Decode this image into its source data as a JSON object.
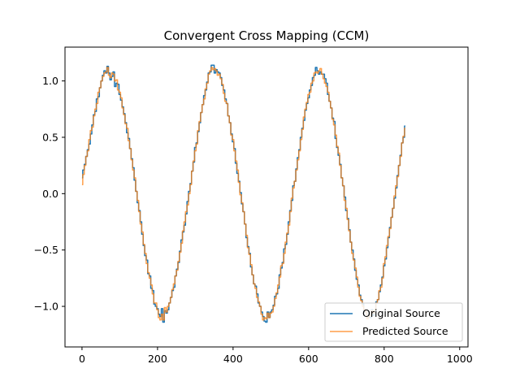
{
  "chart_data": {
    "type": "line",
    "title": "Convergent Cross Mapping (CCM)",
    "xlabel": "",
    "ylabel": "",
    "xlim": [
      -45,
      1022
    ],
    "ylim": [
      -1.36,
      1.3
    ],
    "x_ticks": [
      0,
      200,
      400,
      600,
      800,
      1000
    ],
    "x_tick_labels": [
      "0",
      "200",
      "400",
      "600",
      "800",
      "1000"
    ],
    "y_ticks": [
      -1.0,
      -0.5,
      0.0,
      0.5,
      1.0
    ],
    "y_tick_labels": [
      "−1.0",
      "−0.5",
      "0.0",
      "0.5",
      "1.0"
    ],
    "grid": false,
    "legend_position": "lower-right",
    "series": [
      {
        "name": "Original Source",
        "color": "#1f77b4",
        "x_start": 0,
        "x_step": 4,
        "values": [
          0.14,
          0.21,
          0.26,
          0.33,
          0.39,
          0.44,
          0.53,
          0.61,
          0.7,
          0.73,
          0.84,
          0.86,
          0.94,
          1.0,
          1.05,
          1.09,
          1.07,
          1.13,
          1.07,
          1.01,
          1.04,
          1.08,
          0.95,
          0.98,
          0.97,
          0.88,
          0.83,
          0.77,
          0.71,
          0.63,
          0.54,
          0.49,
          0.4,
          0.31,
          0.23,
          0.12,
          0.02,
          -0.08,
          -0.15,
          -0.25,
          -0.36,
          -0.46,
          -0.55,
          -0.59,
          -0.71,
          -0.73,
          -0.84,
          -0.86,
          -0.98,
          -1.0,
          -1.02,
          -1.07,
          -1.09,
          -1.02,
          -1.14,
          -1.04,
          -1.06,
          -1.03,
          -0.97,
          -0.92,
          -0.86,
          -0.83,
          -0.73,
          -0.67,
          -0.61,
          -0.51,
          -0.41,
          -0.34,
          -0.28,
          -0.18,
          -0.07,
          0.02,
          0.09,
          0.2,
          0.28,
          0.41,
          0.45,
          0.55,
          0.63,
          0.72,
          0.79,
          0.87,
          0.92,
          0.99,
          1.07,
          1.08,
          1.14,
          1.14,
          1.07,
          1.1,
          1.08,
          1.07,
          1.03,
          0.96,
          0.92,
          0.84,
          0.8,
          0.69,
          0.63,
          0.53,
          0.46,
          0.4,
          0.27,
          0.18,
          0.11,
          0.01,
          -0.09,
          -0.16,
          -0.27,
          -0.39,
          -0.47,
          -0.53,
          -0.65,
          -0.72,
          -0.8,
          -0.82,
          -0.89,
          -0.97,
          -1.0,
          -1.05,
          -1.09,
          -1.13,
          -1.14,
          -1.05,
          -1.1,
          -1.05,
          -1.03,
          -0.99,
          -0.91,
          -0.89,
          -0.84,
          -0.72,
          -0.66,
          -0.61,
          -0.49,
          -0.45,
          -0.36,
          -0.25,
          -0.15,
          -0.06,
          0.07,
          0.11,
          0.22,
          0.32,
          0.39,
          0.5,
          0.58,
          0.65,
          0.74,
          0.8,
          0.85,
          0.92,
          0.96,
          1.03,
          1.05,
          1.12,
          1.09,
          1.06,
          1.08,
          1.06,
          1.06,
          1.02,
          0.98,
          0.88,
          0.82,
          0.76,
          0.67,
          0.64,
          0.49,
          0.41,
          0.34,
          0.26,
          0.14,
          0.07,
          -0.03,
          -0.15,
          -0.22,
          -0.32,
          -0.43,
          -0.5,
          -0.58,
          -0.68,
          -0.76,
          -0.81,
          -0.9,
          -0.94,
          -0.98,
          -1.05,
          -1.05,
          -1.1,
          -1.08,
          -1.1,
          -1.03,
          -1.08,
          -1.05,
          -0.96,
          -0.94,
          -0.87,
          -0.81,
          -0.74,
          -0.64,
          -0.58,
          -0.48,
          -0.39,
          -0.3,
          -0.21,
          -0.13,
          -0.04,
          0.05,
          0.16,
          0.25,
          0.34,
          0.45,
          0.5,
          0.6
        ]
      },
      {
        "name": "Predicted Source",
        "color": "#ff7f0e",
        "x_start": 0,
        "x_step": 4,
        "values": [
          0.08,
          0.17,
          0.25,
          0.33,
          0.38,
          0.48,
          0.56,
          0.59,
          0.69,
          0.75,
          0.8,
          0.9,
          0.94,
          1.0,
          1.04,
          1.07,
          1.08,
          1.12,
          1.05,
          1.03,
          1.07,
          1.06,
          1.0,
          1.01,
          0.92,
          0.9,
          0.85,
          0.76,
          0.7,
          0.62,
          0.58,
          0.47,
          0.4,
          0.3,
          0.21,
          0.14,
          0.02,
          -0.06,
          -0.16,
          -0.27,
          -0.34,
          -0.45,
          -0.53,
          -0.62,
          -0.7,
          -0.75,
          -0.81,
          -0.89,
          -0.97,
          -0.97,
          -1.03,
          -1.1,
          -1.12,
          -1.07,
          -1.12,
          -1.01,
          -1.05,
          -1.0,
          -0.97,
          -0.92,
          -0.85,
          -0.8,
          -0.73,
          -0.68,
          -0.6,
          -0.52,
          -0.44,
          -0.33,
          -0.25,
          -0.16,
          -0.1,
          0.0,
          0.08,
          0.2,
          0.29,
          0.38,
          0.44,
          0.56,
          0.64,
          0.72,
          0.79,
          0.84,
          0.93,
          0.98,
          1.06,
          1.09,
          1.12,
          1.1,
          1.11,
          1.09,
          1.05,
          1.06,
          1.02,
          0.97,
          0.89,
          0.82,
          0.8,
          0.69,
          0.63,
          0.52,
          0.48,
          0.38,
          0.29,
          0.21,
          0.1,
          -0.01,
          -0.08,
          -0.16,
          -0.27,
          -0.37,
          -0.48,
          -0.54,
          -0.63,
          -0.72,
          -0.8,
          -0.84,
          -0.92,
          -0.96,
          -1.0,
          -1.07,
          -1.12,
          -1.1,
          -1.11,
          -1.06,
          -1.1,
          -1.06,
          -1.05,
          -1.0,
          -0.93,
          -0.88,
          -0.81,
          -0.74,
          -0.64,
          -0.62,
          -0.53,
          -0.43,
          -0.35,
          -0.28,
          -0.16,
          -0.04,
          0.05,
          0.11,
          0.21,
          0.3,
          0.38,
          0.48,
          0.57,
          0.68,
          0.75,
          0.81,
          0.88,
          0.9,
          0.98,
          1.0,
          1.07,
          1.08,
          1.07,
          1.09,
          1.11,
          1.06,
          1.02,
          0.98,
          0.95,
          0.9,
          0.82,
          0.76,
          0.66,
          0.61,
          0.52,
          0.42,
          0.36,
          0.25,
          0.14,
          0.07,
          -0.06,
          -0.13,
          -0.23,
          -0.33,
          -0.43,
          -0.53,
          -0.59,
          -0.66,
          -0.74,
          -0.83,
          -0.91,
          -0.95,
          -1.0,
          -1.03,
          -1.05,
          -1.11,
          -1.09,
          -1.08,
          -1.04,
          -1.06,
          -1.03,
          -0.97,
          -0.94,
          -0.86,
          -0.83,
          -0.75,
          -0.62,
          -0.56,
          -0.46,
          -0.38,
          -0.31,
          -0.21,
          -0.13,
          -0.02,
          0.07,
          0.15,
          0.25,
          0.33,
          0.45,
          0.51,
          0.58
        ]
      }
    ]
  }
}
